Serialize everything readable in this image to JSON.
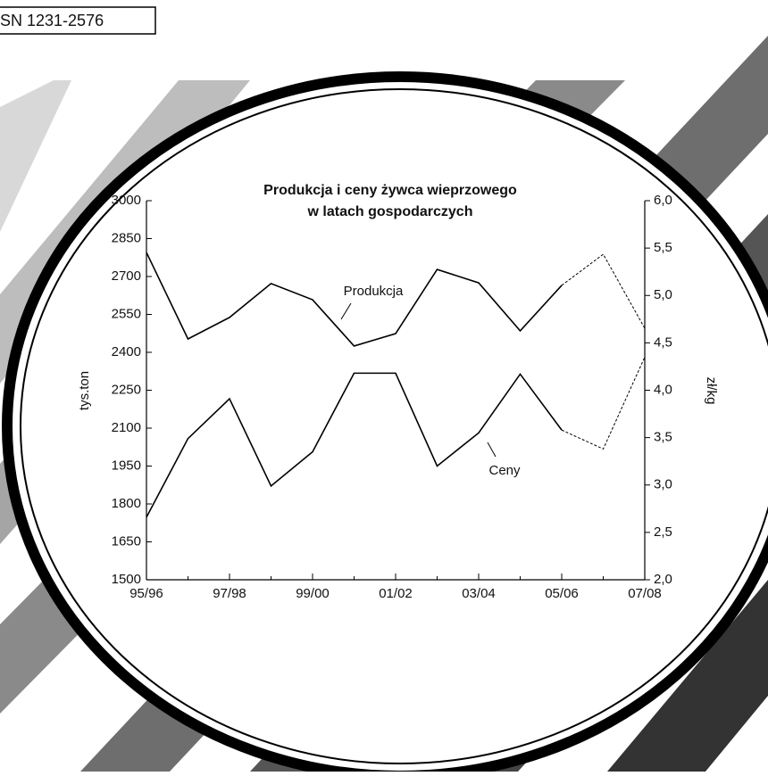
{
  "header": {
    "code": "SN 1231-2576"
  },
  "chart_data": {
    "type": "line",
    "title": "Produkcja i ceny żywca wieprzowego",
    "subtitle": "w latach gospodarczych",
    "y_label": "tys.ton",
    "y2_label": "zł/kg",
    "categories": [
      "95/96",
      null,
      "97/98",
      null,
      "99/00",
      null,
      "01/02",
      null,
      "03/04",
      null,
      "05/06",
      null,
      "07/08"
    ],
    "series": [
      {
        "name": "Produkcja",
        "color": "#000000",
        "values": [
          2795,
          2453,
          2538,
          2672,
          2608,
          2425,
          2474,
          2728,
          2675,
          2485,
          2665,
          2788,
          2495
        ]
      },
      {
        "name": "Ceny",
        "color": "#000000",
        "axis": "y2",
        "values": [
          2.66,
          3.49,
          3.91,
          2.99,
          3.35,
          4.18,
          4.18,
          3.2,
          3.55,
          4.17,
          3.58,
          3.38,
          4.35
        ]
      }
    ],
    "dashed_from_index": 10,
    "ylim": [
      1500,
      3000
    ],
    "yticks": [
      1500,
      1650,
      1800,
      1950,
      2100,
      2250,
      2400,
      2550,
      2700,
      2850,
      3000
    ],
    "y2lim": [
      2,
      6
    ],
    "y2ticks": [
      {
        "value": 2,
        "label": "2,0"
      },
      {
        "value": 2.5,
        "label": "2,5"
      },
      {
        "value": 3,
        "label": "3,0"
      },
      {
        "value": 3.5,
        "label": "3,5"
      },
      {
        "value": 4,
        "label": "4,0"
      },
      {
        "value": 4.5,
        "label": "4,5"
      },
      {
        "value": 5,
        "label": "5,0"
      },
      {
        "value": 5.5,
        "label": "5,5"
      },
      {
        "value": 6,
        "label": "6,0"
      }
    ],
    "grid": false
  }
}
